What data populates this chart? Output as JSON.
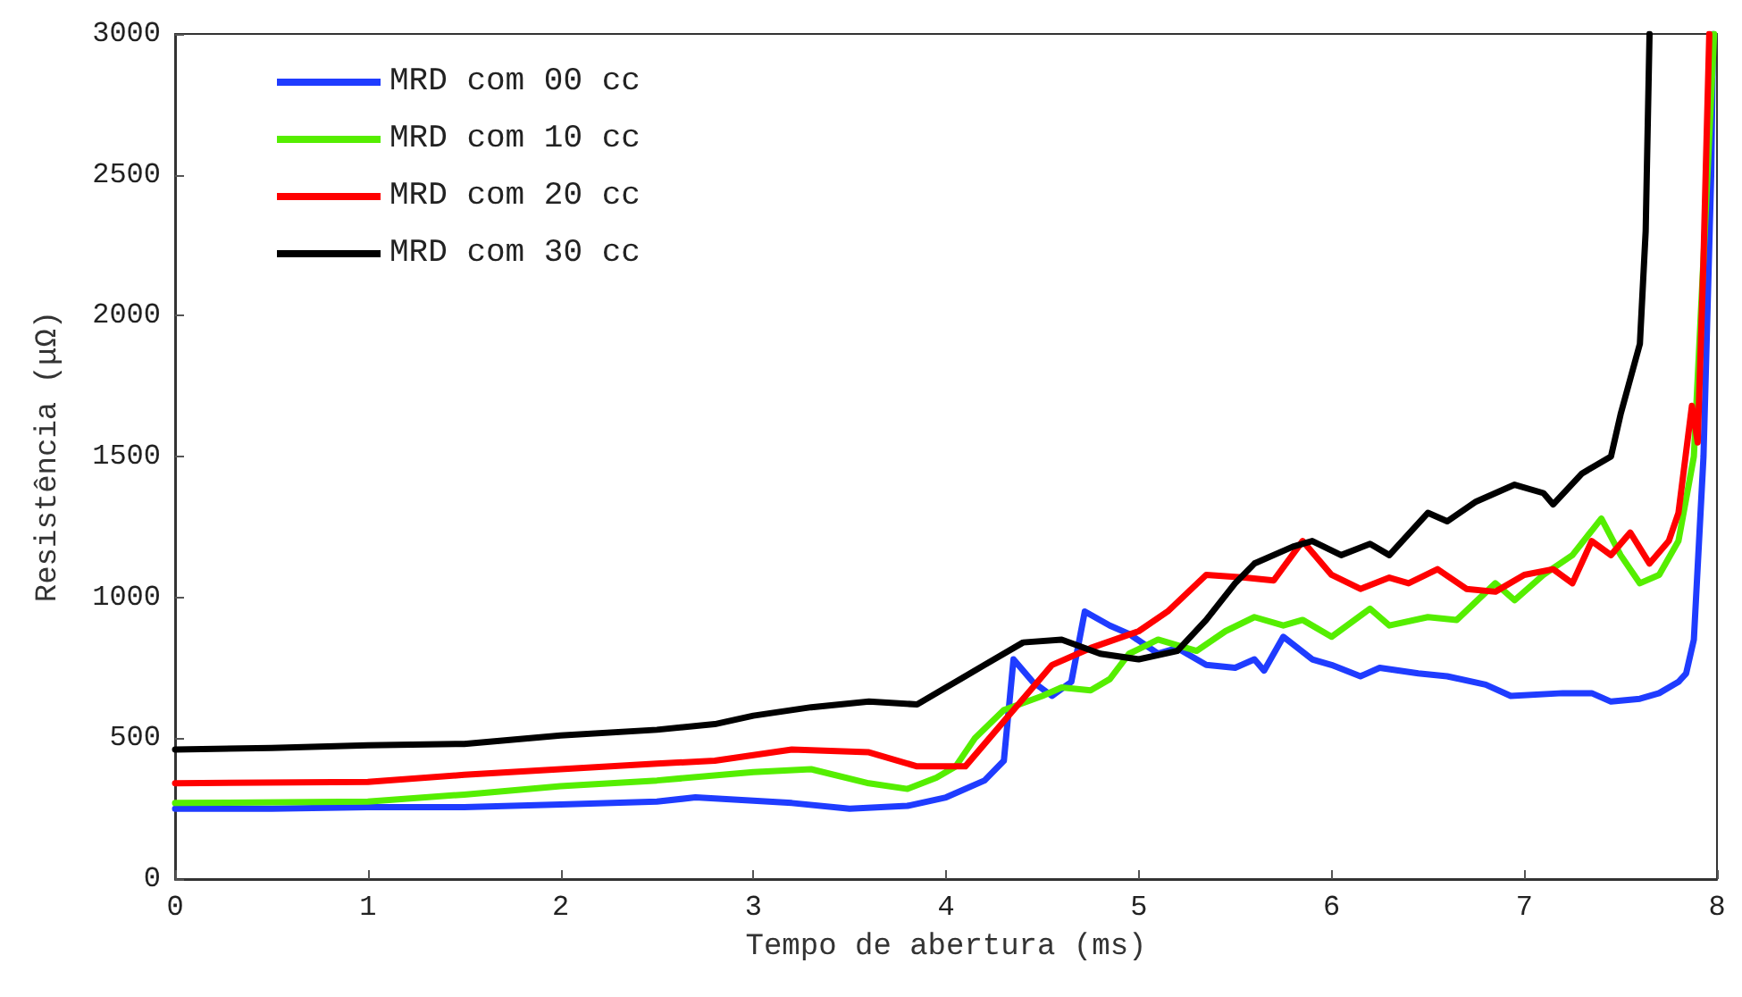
{
  "chart_data": {
    "type": "line",
    "xlabel": "Tempo de abertura (ms)",
    "ylabel": "Resistência (μΩ)",
    "xlim": [
      0,
      8
    ],
    "xticks": [
      0,
      1,
      2,
      3,
      4,
      5,
      6,
      7,
      8
    ],
    "ylim": [
      0,
      3000
    ],
    "yticks": [
      0,
      500,
      1000,
      1500,
      2000,
      2500,
      3000
    ],
    "grid": false,
    "legend": "top left",
    "marker": "none",
    "line_style": "solid",
    "series": [
      {
        "name": "MRD com 00 cc",
        "color": "#1f3cff",
        "x": [
          0,
          0.5,
          1,
          1.5,
          2,
          2.5,
          2.7,
          3.2,
          3.5,
          3.8,
          4.0,
          4.2,
          4.3,
          4.35,
          4.45,
          4.55,
          4.65,
          4.72,
          4.85,
          4.95,
          5.1,
          5.2,
          5.35,
          5.5,
          5.6,
          5.65,
          5.75,
          5.9,
          6.0,
          6.15,
          6.25,
          6.45,
          6.6,
          6.8,
          6.93,
          7.2,
          7.35,
          7.45,
          7.6,
          7.7,
          7.8,
          7.84,
          7.88,
          7.93,
          7.95,
          7.97,
          7.98
        ],
        "values": [
          250,
          250,
          255,
          255,
          265,
          275,
          290,
          270,
          250,
          260,
          290,
          350,
          420,
          780,
          700,
          650,
          700,
          950,
          900,
          870,
          800,
          820,
          760,
          750,
          780,
          740,
          860,
          780,
          760,
          720,
          750,
          730,
          720,
          690,
          650,
          660,
          660,
          630,
          640,
          660,
          700,
          730,
          850,
          1500,
          2000,
          2500,
          3000
        ]
      },
      {
        "name": "MRD com 10 cc",
        "color": "#55ee00",
        "x": [
          0,
          1,
          1.5,
          2,
          2.5,
          3,
          3.3,
          3.6,
          3.8,
          3.95,
          4.05,
          4.15,
          4.3,
          4.5,
          4.6,
          4.75,
          4.85,
          4.95,
          5.1,
          5.3,
          5.45,
          5.6,
          5.75,
          5.85,
          6.0,
          6.2,
          6.3,
          6.5,
          6.65,
          6.85,
          6.95,
          7.1,
          7.25,
          7.4,
          7.5,
          7.6,
          7.7,
          7.8,
          7.88,
          7.93,
          7.985
        ],
        "values": [
          270,
          275,
          300,
          330,
          350,
          380,
          390,
          340,
          320,
          360,
          400,
          500,
          600,
          650,
          680,
          670,
          710,
          800,
          850,
          810,
          880,
          930,
          900,
          920,
          860,
          960,
          900,
          930,
          920,
          1050,
          990,
          1080,
          1150,
          1280,
          1150,
          1050,
          1080,
          1200,
          1500,
          2200,
          3000
        ]
      },
      {
        "name": "MRD com 20 cc",
        "color": "#ff0000",
        "x": [
          0,
          1,
          1.5,
          2,
          2.5,
          2.8,
          3.2,
          3.6,
          3.85,
          4.1,
          4.2,
          4.35,
          4.55,
          4.75,
          5.0,
          5.15,
          5.35,
          5.55,
          5.7,
          5.85,
          6.0,
          6.15,
          6.3,
          6.4,
          6.55,
          6.7,
          6.85,
          7.0,
          7.15,
          7.25,
          7.35,
          7.45,
          7.55,
          7.65,
          7.75,
          7.8,
          7.87,
          7.9,
          7.93,
          7.96
        ],
        "values": [
          340,
          345,
          370,
          390,
          410,
          420,
          460,
          450,
          400,
          400,
          480,
          600,
          760,
          820,
          880,
          950,
          1080,
          1070,
          1060,
          1200,
          1080,
          1030,
          1070,
          1050,
          1100,
          1030,
          1020,
          1080,
          1100,
          1050,
          1200,
          1150,
          1230,
          1120,
          1200,
          1300,
          1680,
          1550,
          2200,
          3000
        ]
      },
      {
        "name": "MRD com 30 cc",
        "color": "#000000",
        "x": [
          0,
          0.5,
          1,
          1.5,
          2,
          2.5,
          2.8,
          3.0,
          3.3,
          3.6,
          3.85,
          4.0,
          4.2,
          4.4,
          4.6,
          4.8,
          5.0,
          5.2,
          5.35,
          5.5,
          5.6,
          5.8,
          5.9,
          6.05,
          6.2,
          6.3,
          6.5,
          6.6,
          6.75,
          6.95,
          7.1,
          7.15,
          7.3,
          7.45,
          7.5,
          7.6,
          7.63,
          7.65
        ],
        "values": [
          460,
          465,
          475,
          480,
          510,
          530,
          550,
          580,
          610,
          630,
          620,
          680,
          760,
          840,
          850,
          800,
          780,
          810,
          920,
          1050,
          1120,
          1180,
          1200,
          1150,
          1190,
          1150,
          1300,
          1270,
          1340,
          1400,
          1370,
          1330,
          1440,
          1500,
          1650,
          1900,
          2300,
          3000
        ]
      }
    ]
  }
}
